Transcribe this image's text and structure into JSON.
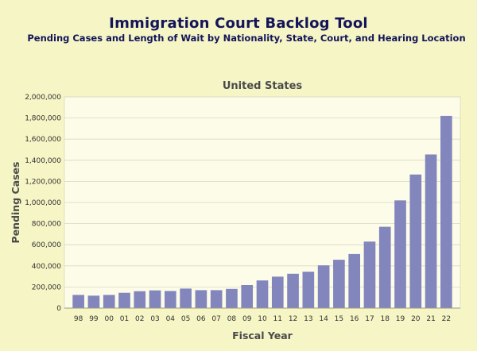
{
  "header": {
    "title": "Immigration Court Backlog Tool",
    "subtitle": "Pending Cases and Length of Wait by Nationality, State, Court, and Hearing Location"
  },
  "colors": {
    "bar": "#8286bd",
    "background": "#f5f5c6",
    "plot_background": "#fcfce9",
    "title": "#14145a"
  },
  "chart_data": {
    "type": "bar",
    "title": "United States",
    "xlabel": "Fiscal Year",
    "ylabel": "Pending Cases",
    "categories": [
      "98",
      "99",
      "00",
      "01",
      "02",
      "03",
      "04",
      "05",
      "06",
      "07",
      "08",
      "09",
      "10",
      "11",
      "12",
      "13",
      "14",
      "15",
      "16",
      "17",
      "18",
      "19",
      "20",
      "21",
      "22"
    ],
    "values": [
      125000,
      118000,
      125000,
      145000,
      160000,
      168000,
      162000,
      185000,
      170000,
      170000,
      182000,
      218000,
      262000,
      298000,
      325000,
      345000,
      405000,
      458000,
      512000,
      630000,
      770000,
      1020000,
      1265000,
      1455000,
      1820000
    ],
    "ylim": [
      0,
      2000000
    ],
    "yticks": [
      "0",
      "200,000",
      "400,000",
      "600,000",
      "800,000",
      "1,000,000",
      "1,200,000",
      "1,400,000",
      "1,600,000",
      "1,800,000",
      "2,000,000"
    ],
    "grid": true,
    "legend": "none"
  }
}
